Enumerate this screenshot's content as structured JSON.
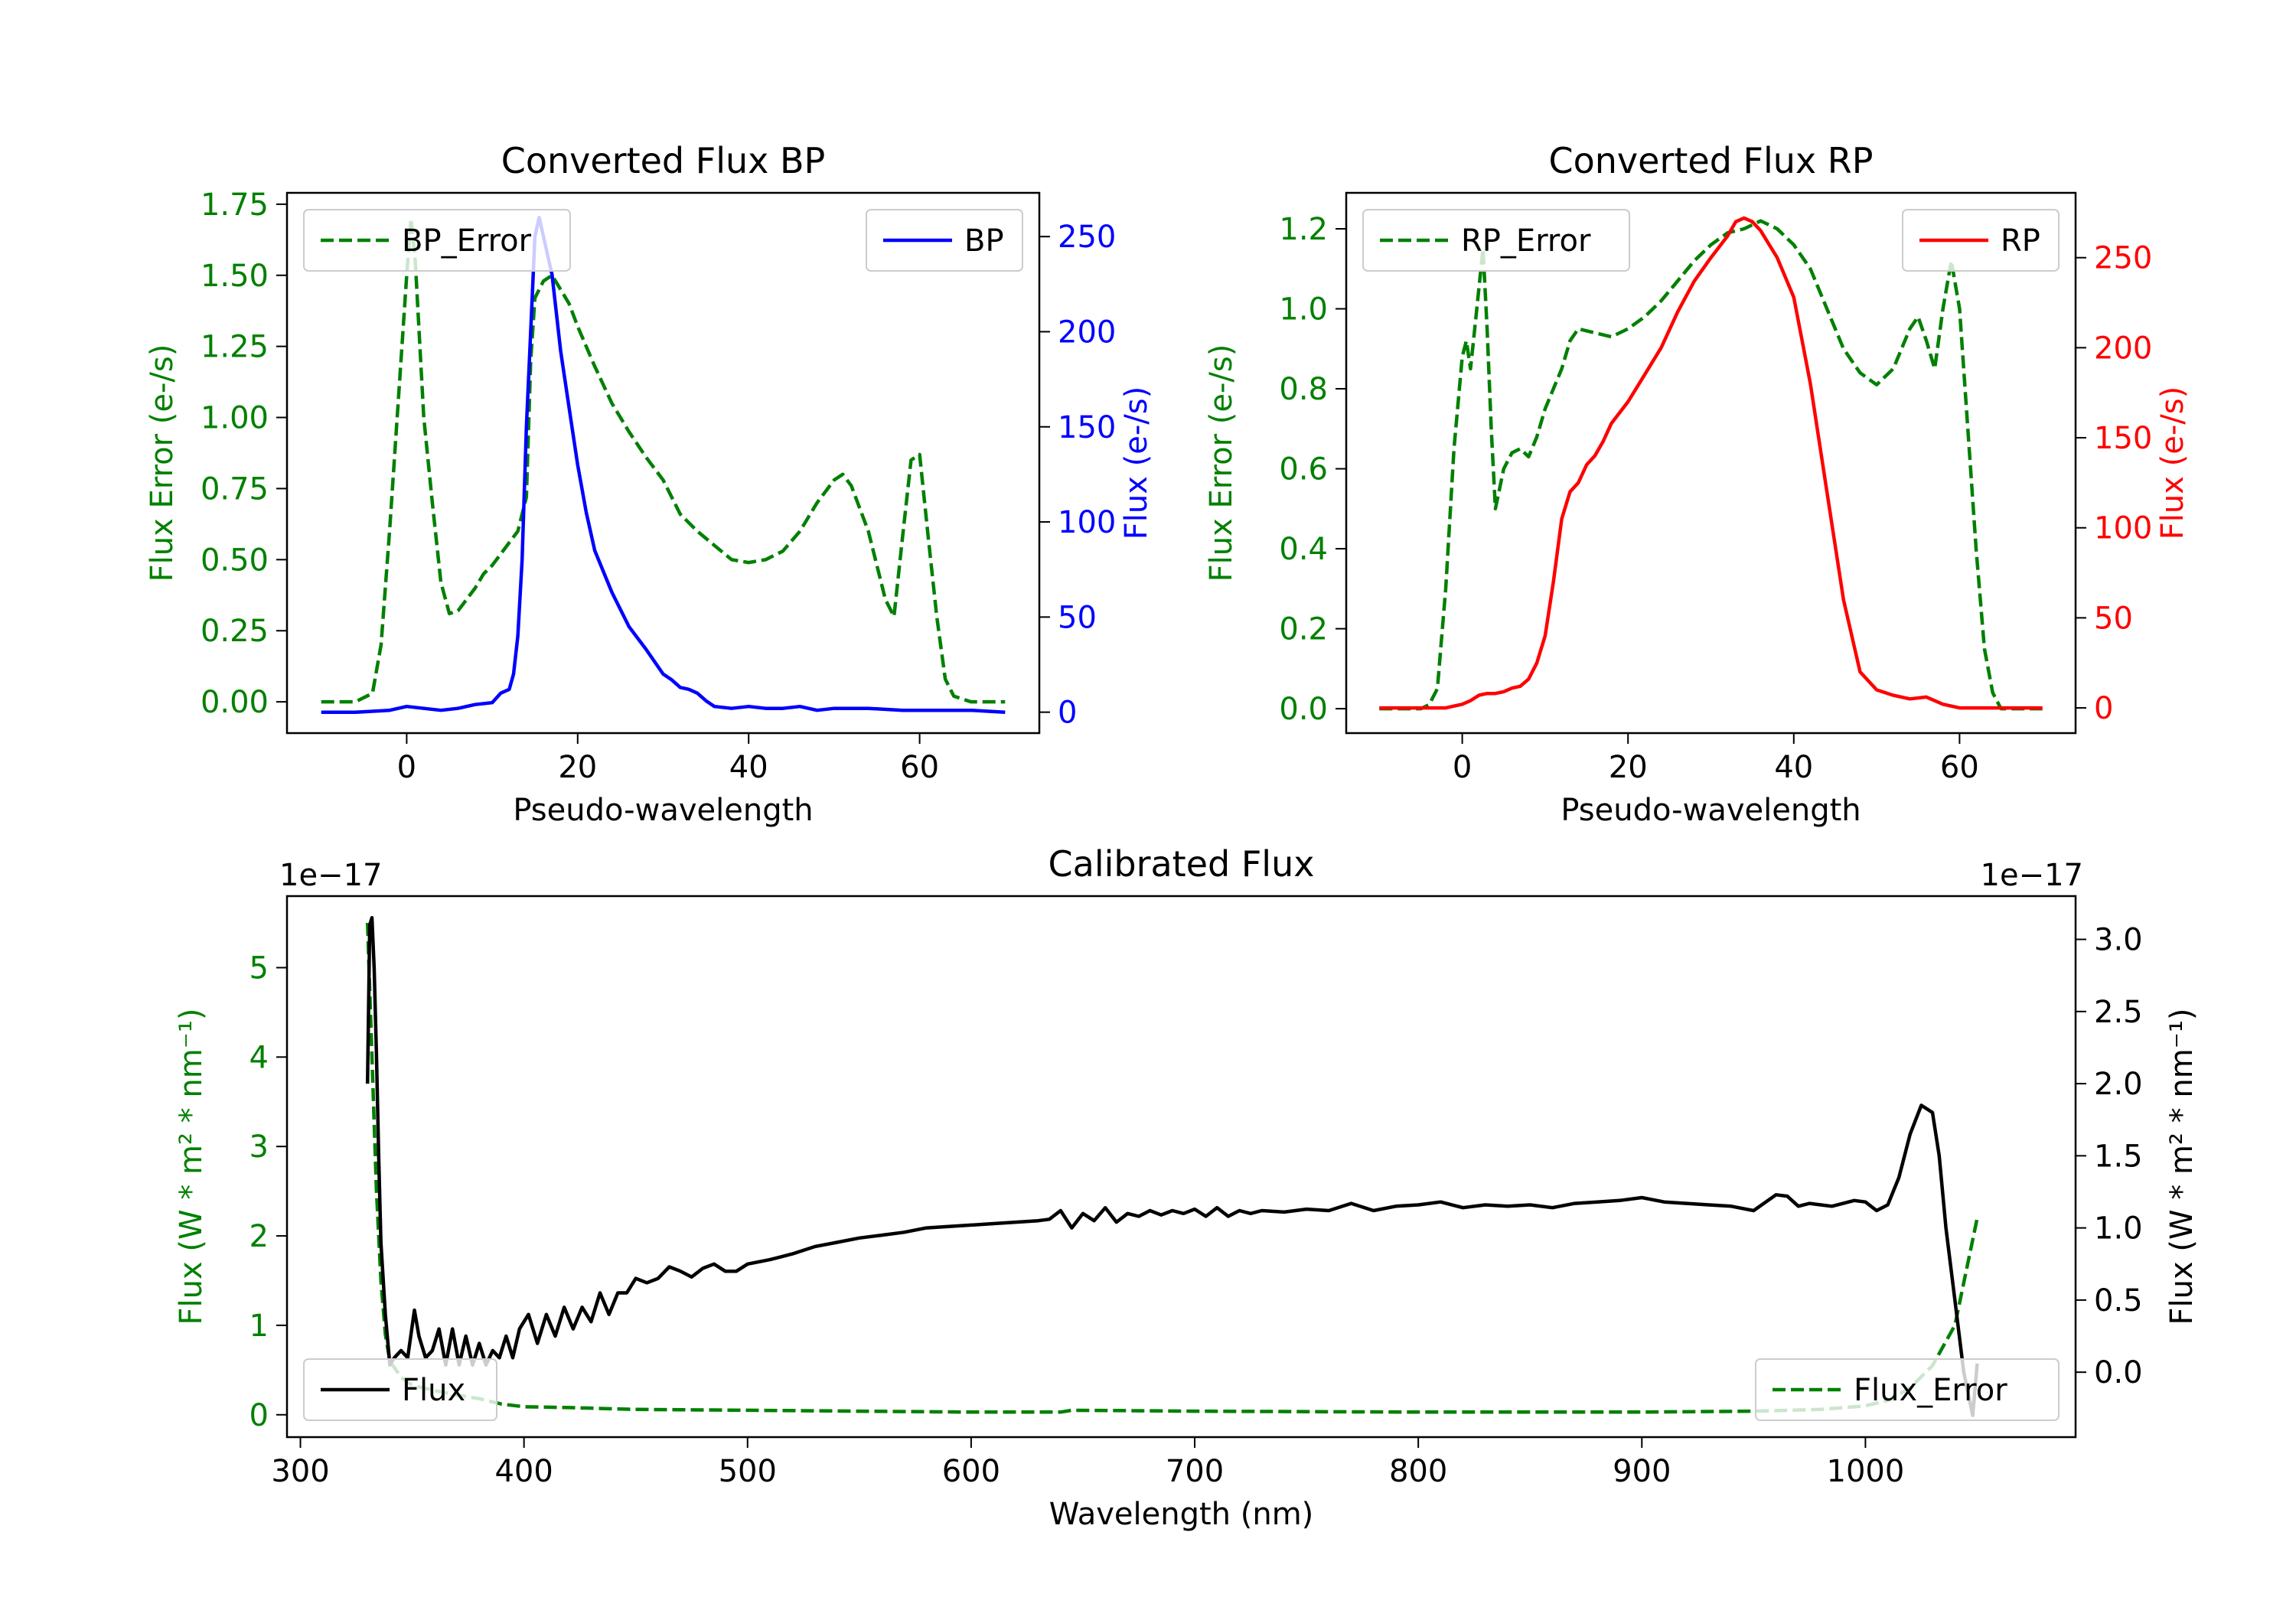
{
  "chart_data": [
    {
      "id": "bp",
      "type": "line",
      "title": "Converted Flux BP",
      "xlabel": "Pseudo-wavelength",
      "ylabel_left": "Flux Error (e-/s)",
      "ylabel_right": "Flux (e-/s)",
      "xlim": [
        -14,
        74
      ],
      "ylim_left": [
        -0.11,
        1.79
      ],
      "ylim_right": [
        -11,
        273
      ],
      "xticks": [
        0,
        20,
        40,
        60
      ],
      "yticks_left": [
        0.0,
        0.25,
        0.5,
        0.75,
        1.0,
        1.25,
        1.5,
        1.75
      ],
      "ytick_labels_left": [
        "0.00",
        "0.25",
        "0.50",
        "0.75",
        "1.00",
        "1.25",
        "1.50",
        "1.75"
      ],
      "yticks_right": [
        0,
        50,
        100,
        150,
        200,
        250
      ],
      "ytick_labels_right": [
        "0",
        "50",
        "100",
        "150",
        "200",
        "250"
      ],
      "left_color": "#008000",
      "right_color": "#0000ff",
      "legend_left": {
        "label": "BP_Error",
        "placement": "upper left"
      },
      "legend_right": {
        "label": "BP",
        "placement": "upper right"
      },
      "series": [
        {
          "name": "BP_Error",
          "axis": "left",
          "color": "#008000",
          "dash": true,
          "x": [
            -10,
            -6,
            -4,
            -3,
            -2,
            -1,
            0,
            0.5,
            1,
            2,
            3,
            4,
            5,
            6,
            7,
            8,
            9,
            10,
            11,
            12,
            13,
            14,
            14.5,
            15,
            16,
            17,
            18,
            19,
            20,
            22,
            24,
            26,
            28,
            30,
            32,
            34,
            36,
            38,
            40,
            42,
            44,
            46,
            48,
            50,
            51,
            52,
            54,
            56,
            57,
            58,
            59,
            60,
            61,
            62,
            63,
            64,
            66,
            70
          ],
          "y": [
            0.0,
            0.0,
            0.03,
            0.2,
            0.6,
            1.05,
            1.5,
            1.7,
            1.55,
            1.0,
            0.7,
            0.42,
            0.31,
            0.32,
            0.36,
            0.4,
            0.45,
            0.48,
            0.52,
            0.56,
            0.6,
            0.72,
            1.2,
            1.42,
            1.48,
            1.5,
            1.45,
            1.4,
            1.32,
            1.18,
            1.05,
            0.95,
            0.86,
            0.78,
            0.66,
            0.6,
            0.55,
            0.5,
            0.49,
            0.5,
            0.53,
            0.6,
            0.7,
            0.78,
            0.8,
            0.76,
            0.6,
            0.36,
            0.3,
            0.58,
            0.85,
            0.87,
            0.58,
            0.3,
            0.08,
            0.02,
            0.0,
            0.0
          ]
        },
        {
          "name": "BP",
          "axis": "right",
          "color": "#0000ff",
          "dash": false,
          "x": [
            -10,
            -6,
            -2,
            0,
            2,
            4,
            6,
            8,
            10,
            11,
            12,
            12.5,
            13,
            13.5,
            14,
            14.5,
            15,
            15.5,
            16,
            17,
            18,
            19,
            20,
            21,
            22,
            24,
            26,
            28,
            30,
            31,
            32,
            33,
            34,
            35,
            36,
            38,
            40,
            42,
            44,
            46,
            48,
            50,
            54,
            58,
            62,
            66,
            70
          ],
          "y": [
            0,
            0,
            1,
            3,
            2,
            1,
            2,
            4,
            5,
            10,
            12,
            20,
            40,
            80,
            150,
            200,
            250,
            260,
            250,
            230,
            190,
            160,
            130,
            105,
            85,
            63,
            45,
            33,
            20,
            17,
            13,
            12,
            10,
            6,
            3,
            2,
            3,
            2,
            2,
            3,
            1,
            2,
            2,
            1,
            1,
            1,
            0
          ]
        }
      ]
    },
    {
      "id": "rp",
      "type": "line",
      "title": "Converted Flux RP",
      "xlabel": "Pseudo-wavelength",
      "ylabel_left": "Flux Error (e-/s)",
      "ylabel_right": "Flux (e-/s)",
      "xlim": [
        -14,
        74
      ],
      "ylim_left": [
        -0.061,
        1.29
      ],
      "ylim_right": [
        -14,
        286
      ],
      "xticks": [
        0,
        20,
        40,
        60
      ],
      "yticks_left": [
        0.0,
        0.2,
        0.4,
        0.6,
        0.8,
        1.0,
        1.2
      ],
      "ytick_labels_left": [
        "0.0",
        "0.2",
        "0.4",
        "0.6",
        "0.8",
        "1.0",
        "1.2"
      ],
      "yticks_right": [
        0,
        50,
        100,
        150,
        200,
        250
      ],
      "ytick_labels_right": [
        "0",
        "50",
        "100",
        "150",
        "200",
        "250"
      ],
      "left_color": "#008000",
      "right_color": "#ff0000",
      "legend_left": {
        "label": "RP_Error",
        "placement": "upper left"
      },
      "legend_right": {
        "label": "RP",
        "placement": "upper right"
      },
      "series": [
        {
          "name": "RP_Error",
          "axis": "left",
          "color": "#008000",
          "dash": true,
          "x": [
            -10,
            -5,
            -4,
            -3,
            -2,
            -1,
            0,
            0.5,
            1,
            1.5,
            2,
            2.5,
            3,
            3.5,
            4,
            5,
            6,
            7,
            8,
            9,
            10,
            11,
            12,
            13,
            14,
            16,
            18,
            20,
            22,
            24,
            26,
            28,
            30,
            32,
            34,
            36,
            38,
            40,
            42,
            44,
            46,
            48,
            50,
            52,
            53,
            54,
            55,
            56,
            57,
            58,
            59,
            60,
            61,
            62,
            63,
            64,
            65,
            70
          ],
          "y": [
            0.0,
            0.0,
            0.01,
            0.05,
            0.3,
            0.65,
            0.88,
            0.92,
            0.85,
            0.95,
            1.05,
            1.15,
            0.95,
            0.7,
            0.5,
            0.6,
            0.64,
            0.65,
            0.63,
            0.68,
            0.75,
            0.8,
            0.85,
            0.92,
            0.95,
            0.94,
            0.93,
            0.95,
            0.98,
            1.02,
            1.07,
            1.12,
            1.16,
            1.19,
            1.2,
            1.22,
            1.2,
            1.16,
            1.1,
            1.0,
            0.9,
            0.84,
            0.81,
            0.85,
            0.9,
            0.95,
            0.98,
            0.92,
            0.85,
            1.0,
            1.12,
            1.0,
            0.7,
            0.4,
            0.15,
            0.04,
            0.0,
            0.0
          ]
        },
        {
          "name": "RP",
          "axis": "right",
          "color": "#ff0000",
          "dash": false,
          "x": [
            -10,
            -4,
            -2,
            0,
            1,
            2,
            3,
            4,
            5,
            6,
            7,
            8,
            9,
            10,
            11,
            12,
            13,
            14,
            15,
            16,
            17,
            18,
            20,
            22,
            24,
            26,
            28,
            30,
            32,
            33,
            34,
            35,
            36,
            38,
            40,
            42,
            44,
            46,
            48,
            50,
            52,
            54,
            56,
            58,
            60,
            64,
            70
          ],
          "y": [
            0,
            0,
            0,
            2,
            4,
            7,
            8,
            8,
            9,
            11,
            12,
            16,
            25,
            40,
            70,
            105,
            120,
            125,
            135,
            140,
            148,
            158,
            170,
            185,
            200,
            220,
            237,
            250,
            262,
            270,
            272,
            270,
            265,
            250,
            228,
            180,
            120,
            60,
            20,
            10,
            7,
            5,
            6,
            2,
            0,
            0,
            0
          ]
        }
      ]
    },
    {
      "id": "cal",
      "type": "line",
      "title": "Calibrated Flux",
      "xlabel": "Wavelength (nm)",
      "ylabel_left": "Flux (W * m² * nm⁻¹)",
      "ylabel_right": "Flux (W * m² * nm⁻¹)",
      "offset_left": "1e−17",
      "offset_right": "1e−17",
      "xlim": [
        294,
        1094
      ],
      "ylim_left": [
        -0.25,
        5.8
      ],
      "ylim_right": [
        -0.45,
        3.3
      ],
      "xticks": [
        300,
        400,
        500,
        600,
        700,
        800,
        900,
        1000
      ],
      "yticks_left": [
        0,
        1,
        2,
        3,
        4,
        5
      ],
      "ytick_labels_left": [
        "0",
        "1",
        "2",
        "3",
        "4",
        "5"
      ],
      "yticks_right": [
        0.0,
        0.5,
        1.0,
        1.5,
        2.0,
        2.5,
        3.0
      ],
      "ytick_labels_right": [
        "0.0",
        "0.5",
        "1.0",
        "1.5",
        "2.0",
        "2.5",
        "3.0"
      ],
      "left_color": "#008000",
      "right_color": "#000000",
      "legend_left": {
        "label": "Flux",
        "placement": "lower left"
      },
      "legend_right": {
        "label": "Flux_Error",
        "placement": "lower right"
      },
      "series": [
        {
          "name": "Flux_Error",
          "axis": "left",
          "color": "#008000",
          "dash": true,
          "x": [
            330,
            332,
            334,
            336,
            338,
            340,
            345,
            350,
            360,
            370,
            380,
            390,
            400,
            420,
            450,
            500,
            600,
            640,
            645,
            700,
            800,
            900,
            950,
            980,
            1000,
            1010,
            1020,
            1030,
            1040,
            1045,
            1050
          ],
          "y": [
            5.5,
            4.0,
            2.5,
            1.5,
            0.9,
            0.6,
            0.42,
            0.33,
            0.27,
            0.22,
            0.18,
            0.12,
            0.09,
            0.08,
            0.06,
            0.05,
            0.03,
            0.03,
            0.05,
            0.04,
            0.03,
            0.03,
            0.04,
            0.06,
            0.1,
            0.16,
            0.3,
            0.55,
            1.0,
            1.6,
            2.2
          ]
        },
        {
          "name": "Flux",
          "axis": "right",
          "color": "#000000",
          "dash": false,
          "x": [
            330,
            331,
            332,
            333,
            334,
            335,
            336,
            338,
            340,
            342,
            345,
            348,
            351,
            353,
            356,
            359,
            362,
            365,
            368,
            371,
            374,
            377,
            380,
            383,
            386,
            389,
            392,
            395,
            398,
            402,
            406,
            410,
            414,
            418,
            422,
            426,
            430,
            434,
            438,
            442,
            446,
            450,
            455,
            460,
            465,
            470,
            475,
            480,
            485,
            490,
            495,
            500,
            510,
            520,
            530,
            540,
            550,
            560,
            570,
            580,
            590,
            600,
            610,
            620,
            630,
            635,
            640,
            645,
            650,
            655,
            660,
            665,
            670,
            675,
            680,
            685,
            690,
            695,
            700,
            705,
            710,
            715,
            720,
            725,
            730,
            740,
            750,
            760,
            770,
            780,
            790,
            800,
            810,
            820,
            830,
            840,
            850,
            860,
            870,
            880,
            890,
            900,
            910,
            920,
            930,
            940,
            950,
            960,
            965,
            970,
            975,
            980,
            985,
            990,
            995,
            1000,
            1005,
            1010,
            1015,
            1020,
            1025,
            1030,
            1033,
            1036,
            1040,
            1044,
            1048,
            1050
          ],
          "y": [
            2.0,
            3.1,
            3.15,
            2.8,
            2.2,
            1.5,
            0.9,
            0.4,
            0.05,
            0.1,
            0.15,
            0.1,
            0.43,
            0.25,
            0.1,
            0.15,
            0.3,
            0.05,
            0.3,
            0.05,
            0.25,
            0.05,
            0.2,
            0.05,
            0.15,
            0.1,
            0.25,
            0.1,
            0.3,
            0.4,
            0.2,
            0.4,
            0.25,
            0.45,
            0.3,
            0.45,
            0.35,
            0.55,
            0.4,
            0.55,
            0.55,
            0.65,
            0.62,
            0.65,
            0.73,
            0.7,
            0.66,
            0.72,
            0.75,
            0.7,
            0.7,
            0.75,
            0.78,
            0.82,
            0.87,
            0.9,
            0.93,
            0.95,
            0.97,
            1.0,
            1.01,
            1.02,
            1.03,
            1.04,
            1.05,
            1.06,
            1.12,
            1.0,
            1.1,
            1.05,
            1.14,
            1.04,
            1.1,
            1.08,
            1.12,
            1.09,
            1.12,
            1.1,
            1.13,
            1.08,
            1.14,
            1.08,
            1.12,
            1.1,
            1.12,
            1.11,
            1.13,
            1.12,
            1.17,
            1.12,
            1.15,
            1.16,
            1.18,
            1.14,
            1.16,
            1.15,
            1.16,
            1.14,
            1.17,
            1.18,
            1.19,
            1.21,
            1.18,
            1.17,
            1.16,
            1.15,
            1.12,
            1.23,
            1.22,
            1.15,
            1.17,
            1.16,
            1.15,
            1.17,
            1.19,
            1.18,
            1.12,
            1.16,
            1.35,
            1.65,
            1.85,
            1.8,
            1.5,
            1.0,
            0.5,
            0.0,
            -0.3,
            0.06
          ]
        }
      ]
    }
  ]
}
